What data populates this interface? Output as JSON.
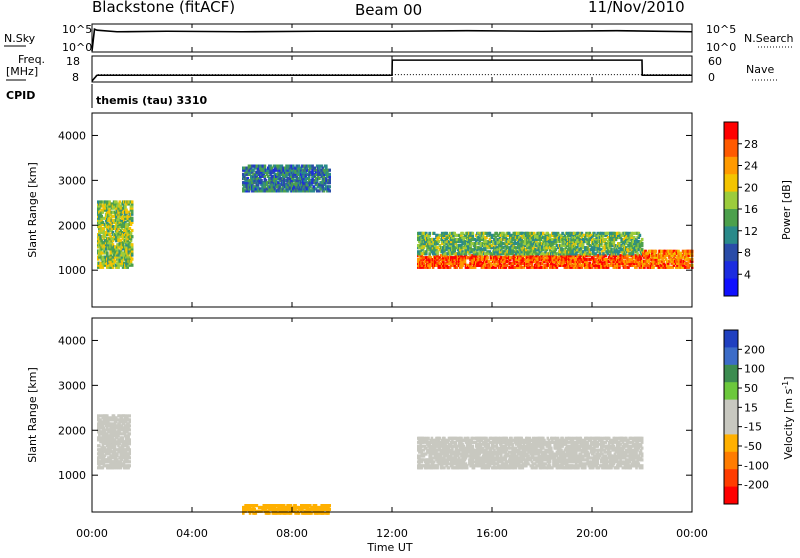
{
  "header": {
    "station": "Blackstone (fitACF)",
    "beam": "Beam 00",
    "date": "11/Nov/2010"
  },
  "top_panels": {
    "nsky_label": "N.Sky",
    "nsky_ticks": [
      "10^5",
      "10^0"
    ],
    "nsearch_label": "N.Search",
    "nsearch_ticks": [
      "10^5",
      "10^0"
    ],
    "freq_label": "Freq.",
    "freq_unit": "[MHz]",
    "freq_ticks": [
      "18",
      "8"
    ],
    "nave_label": "Nave",
    "nave_ticks": [
      "60",
      "0"
    ],
    "cpid_label": "CPID",
    "cpid_value": "themis (tau) 3310"
  },
  "power_colorbar": {
    "label": "Power [dB]",
    "ticks": [
      "28",
      "24",
      "20",
      "16",
      "12",
      "8",
      "4"
    ],
    "colors": [
      "#ff0000",
      "#ff5a00",
      "#ff9a00",
      "#f4c400",
      "#9ccc3c",
      "#4ca04c",
      "#2a8a8a",
      "#2a4ca8",
      "#1c2ce0",
      "#1010ff"
    ]
  },
  "velocity_colorbar": {
    "label": "Velocity [m s",
    "label_sup": "-1",
    "label_end": "]",
    "ticks": [
      "200",
      "100",
      "50",
      "15",
      "-15",
      "-50",
      "-100",
      "-200"
    ],
    "colors": [
      "#2040c0",
      "#3c6cc8",
      "#3c8c50",
      "#6cc83c",
      "#c8c8c0",
      "#c8c8c0",
      "#ffb000",
      "#ff7c00",
      "#ff3c00",
      "#ff0000"
    ]
  },
  "axes": {
    "ylabel": "Slant Range [km]",
    "yticks": [
      "4000",
      "3000",
      "2000",
      "1000"
    ],
    "xticks": [
      "00:00",
      "04:00",
      "08:00",
      "12:00",
      "16:00",
      "20:00",
      "00:00"
    ],
    "xlabel": "Time UT"
  },
  "chart_data": [
    {
      "type": "line",
      "panel": "N.Sky / N.Search",
      "x_hours": [
        0,
        0.1,
        0.2,
        1,
        3,
        6,
        9,
        12,
        15,
        18,
        21,
        24
      ],
      "nsky_log10": [
        0,
        4.2,
        4.0,
        3.7,
        3.8,
        3.7,
        3.8,
        3.8,
        3.9,
        3.8,
        3.9,
        3.7
      ],
      "ylim": [
        0,
        5
      ]
    },
    {
      "type": "line",
      "panel": "Freq / Nave",
      "x_hours": [
        0,
        0.2,
        12,
        12.01,
        22,
        22.01,
        24
      ],
      "freq_mhz": [
        8,
        10.4,
        10.4,
        16.7,
        16.7,
        10.4,
        10.4
      ],
      "nave": [
        0,
        16,
        16,
        16,
        16,
        16,
        16
      ],
      "ylim": [
        8,
        18
      ]
    },
    {
      "type": "heatmap",
      "panel": "Power",
      "xlim": [
        0,
        24
      ],
      "ylim": [
        180,
        4500
      ],
      "zrange": [
        0,
        30
      ],
      "bands": [
        {
          "x0": 0.2,
          "x1": 1.6,
          "y0": 1100,
          "y1": 2600,
          "z": 16
        },
        {
          "x0": 6,
          "x1": 9.5,
          "y0": 2800,
          "y1": 3400,
          "z": 10
        },
        {
          "x0": 13,
          "x1": 22,
          "y0": 1100,
          "y1": 1400,
          "z": 26
        },
        {
          "x0": 13,
          "x1": 22,
          "y0": 1400,
          "y1": 1900,
          "z": 14
        },
        {
          "x0": 22,
          "x1": 24,
          "y0": 1100,
          "y1": 1500,
          "z": 24
        }
      ]
    },
    {
      "type": "heatmap",
      "panel": "Velocity",
      "xlim": [
        0,
        24
      ],
      "ylim": [
        180,
        4500
      ],
      "zrange": [
        -200,
        200
      ],
      "bands": [
        {
          "x0": 0.2,
          "x1": 1.5,
          "y0": 1200,
          "y1": 2400,
          "z": 0
        },
        {
          "x0": 13,
          "x1": 22,
          "y0": 1200,
          "y1": 1900,
          "z": 0
        },
        {
          "x0": 6,
          "x1": 9.5,
          "y0": 190,
          "y1": 400,
          "z": -60
        }
      ]
    }
  ]
}
